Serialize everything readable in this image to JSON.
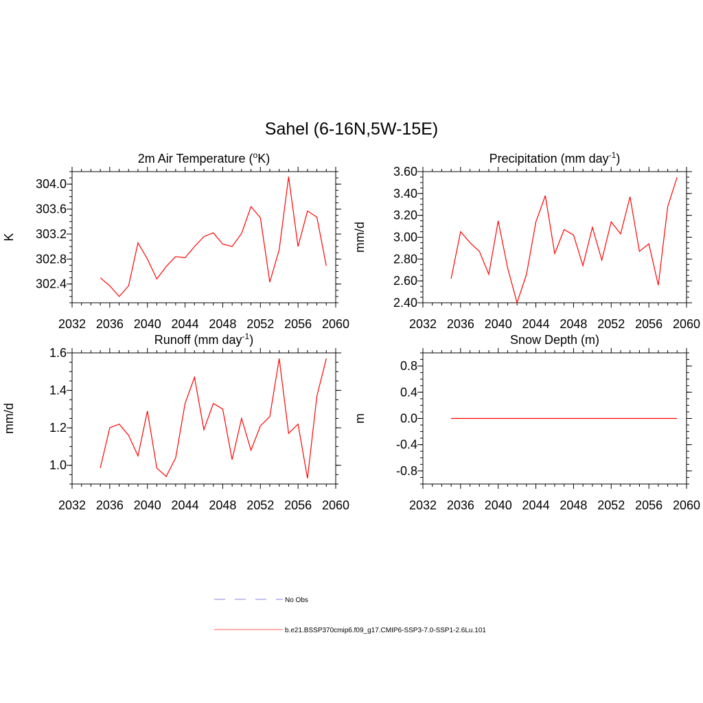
{
  "figure_title": "Sahel (6-16N,5W-15E)",
  "legend": {
    "entries": [
      {
        "label": "No Obs",
        "color": "#9a9ae6",
        "dash": true
      },
      {
        "label": "b.e21.BSSP370cmip6.f09_g17.CMIP6-SSP3-7.0-SSP1-2.6Lu.101",
        "color": "#ff8080",
        "dash": false
      }
    ]
  },
  "chart_data": [
    {
      "type": "line",
      "title_main": "2m Air Temperature (",
      "title_sup": "o",
      "title_tail": "K)",
      "ylabel": "K",
      "xlim": [
        2032,
        2060
      ],
      "ylim": [
        302.1,
        304.2
      ],
      "xticks": [
        "2032",
        "2036",
        "2040",
        "2044",
        "2048",
        "2052",
        "2056",
        "2060"
      ],
      "xtick_values": [
        2032,
        2036,
        2040,
        2044,
        2048,
        2052,
        2056,
        2060
      ],
      "yticks": [
        "302.4",
        "302.8",
        "303.2",
        "303.6",
        "304.0"
      ],
      "ytick_values": [
        302.4,
        302.8,
        303.2,
        303.6,
        304.0
      ],
      "y_minor_step": 0.1,
      "color": "#ff0000",
      "x": [
        2035,
        2036,
        2037,
        2038,
        2039,
        2040,
        2041,
        2042,
        2043,
        2044,
        2045,
        2046,
        2047,
        2048,
        2049,
        2050,
        2051,
        2052,
        2053,
        2054,
        2055,
        2056,
        2057,
        2058,
        2059
      ],
      "y": [
        302.5,
        302.37,
        302.2,
        302.37,
        303.06,
        302.8,
        302.48,
        302.68,
        302.84,
        302.82,
        303.0,
        303.16,
        303.22,
        303.04,
        303.0,
        303.21,
        303.64,
        303.46,
        302.43,
        302.95,
        304.12,
        303.0,
        303.57,
        303.47,
        302.69
      ]
    },
    {
      "type": "line",
      "title_main": "Precipitation (mm day",
      "title_sup": "-1",
      "title_tail": ")",
      "ylabel": "mm/d",
      "xlim": [
        2032,
        2060
      ],
      "ylim": [
        2.4,
        3.6
      ],
      "xticks": [
        "2032",
        "2036",
        "2040",
        "2044",
        "2048",
        "2052",
        "2056",
        "2060"
      ],
      "xtick_values": [
        2032,
        2036,
        2040,
        2044,
        2048,
        2052,
        2056,
        2060
      ],
      "yticks": [
        "2.40",
        "2.60",
        "2.80",
        "3.00",
        "3.20",
        "3.40",
        "3.60"
      ],
      "ytick_values": [
        2.4,
        2.6,
        2.8,
        3.0,
        3.2,
        3.4,
        3.6
      ],
      "y_minor_step": 0.05,
      "color": "#ff0000",
      "x": [
        2035,
        2036,
        2037,
        2038,
        2039,
        2040,
        2041,
        2042,
        2043,
        2044,
        2045,
        2046,
        2047,
        2048,
        2049,
        2050,
        2051,
        2052,
        2053,
        2054,
        2055,
        2056,
        2057,
        2058,
        2059
      ],
      "y": [
        2.62,
        3.05,
        2.95,
        2.87,
        2.66,
        3.15,
        2.72,
        2.4,
        2.66,
        3.14,
        3.38,
        2.85,
        3.07,
        3.02,
        2.74,
        3.09,
        2.79,
        3.14,
        3.03,
        3.37,
        2.87,
        2.94,
        2.56,
        3.28,
        3.55
      ]
    },
    {
      "type": "line",
      "title_main": "Runoff (mm day",
      "title_sup": "-1",
      "title_tail": ")",
      "ylabel": "mm/d",
      "xlim": [
        2032,
        2060
      ],
      "ylim": [
        0.9,
        1.6
      ],
      "xticks": [
        "2032",
        "2036",
        "2040",
        "2044",
        "2048",
        "2052",
        "2056",
        "2060"
      ],
      "xtick_values": [
        2032,
        2036,
        2040,
        2044,
        2048,
        2052,
        2056,
        2060
      ],
      "yticks": [
        "1.0",
        "1.2",
        "1.4",
        "1.6"
      ],
      "ytick_values": [
        1.0,
        1.2,
        1.4,
        1.6
      ],
      "y_minor_step": 0.05,
      "color": "#ff0000",
      "x": [
        2035,
        2036,
        2037,
        2038,
        2039,
        2040,
        2041,
        2042,
        2043,
        2044,
        2045,
        2046,
        2047,
        2048,
        2049,
        2050,
        2051,
        2052,
        2053,
        2054,
        2055,
        2056,
        2057,
        2058,
        2059
      ],
      "y": [
        0.985,
        1.2,
        1.22,
        1.16,
        1.05,
        1.29,
        0.985,
        0.94,
        1.04,
        1.33,
        1.47,
        1.19,
        1.33,
        1.3,
        1.03,
        1.25,
        1.08,
        1.21,
        1.26,
        1.57,
        1.17,
        1.22,
        0.93,
        1.37,
        1.57
      ]
    },
    {
      "type": "line",
      "title_main": "Snow Depth (m)",
      "title_sup": "",
      "title_tail": "",
      "ylabel": "m",
      "xlim": [
        2032,
        2060
      ],
      "ylim": [
        -1.0,
        1.0
      ],
      "xticks": [
        "2032",
        "2036",
        "2040",
        "2044",
        "2048",
        "2052",
        "2056",
        "2060"
      ],
      "xtick_values": [
        2032,
        2036,
        2040,
        2044,
        2048,
        2052,
        2056,
        2060
      ],
      "yticks": [
        "-0.8",
        "-0.4",
        "0.0",
        "0.4",
        "0.8"
      ],
      "ytick_values": [
        -0.8,
        -0.4,
        0.0,
        0.4,
        0.8
      ],
      "y_minor_step": 0.1,
      "color": "#ff0000",
      "x": [
        2035,
        2036,
        2037,
        2038,
        2039,
        2040,
        2041,
        2042,
        2043,
        2044,
        2045,
        2046,
        2047,
        2048,
        2049,
        2050,
        2051,
        2052,
        2053,
        2054,
        2055,
        2056,
        2057,
        2058,
        2059
      ],
      "y": [
        0,
        0,
        0,
        0,
        0,
        0,
        0,
        0,
        0,
        0,
        0,
        0,
        0,
        0,
        0,
        0,
        0,
        0,
        0,
        0,
        0,
        0,
        0,
        0,
        0
      ]
    }
  ]
}
